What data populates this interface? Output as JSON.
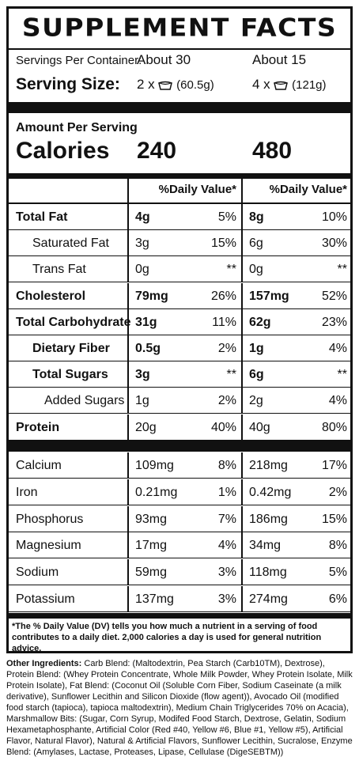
{
  "title": "SUPPLEMENT FACTS",
  "servings_per_container_label": "Servings Per Container:",
  "serving_size_label": "Serving Size:",
  "servings": [
    {
      "per_container": "About 30",
      "scoops": "2 x",
      "grams": "(60.5g)"
    },
    {
      "per_container": "About 15",
      "scoops": "4 x",
      "grams": "(121g)"
    }
  ],
  "amount_per_serving_label": "Amount Per Serving",
  "calories_label": "Calories",
  "calories": [
    "240",
    "480"
  ],
  "daily_value_header": "%Daily Value*",
  "macros": [
    {
      "name": "Total Fat",
      "bold": true,
      "indent": 0,
      "a": "4g",
      "a_dv": "5%",
      "b": "8g",
      "b_dv": "10%"
    },
    {
      "name": "Saturated Fat",
      "bold": false,
      "indent": 1,
      "a": "3g",
      "a_dv": "15%",
      "b": "6g",
      "b_dv": "30%"
    },
    {
      "name": "Trans Fat",
      "bold": false,
      "indent": 1,
      "a": "0g",
      "a_dv": "**",
      "b": "0g",
      "b_dv": "**"
    },
    {
      "name": "Cholesterol",
      "bold": true,
      "indent": 0,
      "a": "79mg",
      "a_dv": "26%",
      "b": "157mg",
      "b_dv": "52%"
    },
    {
      "name": "Total Carbohydrate",
      "bold": true,
      "indent": 0,
      "a": "31g",
      "a_dv": "11%",
      "b": "62g",
      "b_dv": "23%"
    },
    {
      "name": "Dietary Fiber",
      "bold": true,
      "indent": 1,
      "a": "0.5g",
      "a_dv": "2%",
      "b": "1g",
      "b_dv": "4%"
    },
    {
      "name": "Total Sugars",
      "bold": true,
      "indent": 1,
      "a": "3g",
      "a_dv": "**",
      "b": "6g",
      "b_dv": "**"
    },
    {
      "name": "Added Sugars",
      "bold": false,
      "indent": 2,
      "a": "1g",
      "a_dv": "2%",
      "b": "2g",
      "b_dv": "4%"
    },
    {
      "name": "Protein",
      "bold": true,
      "indent": 0,
      "a": "20g",
      "a_dv": "40%",
      "b": "40g",
      "b_dv": "80%"
    }
  ],
  "minerals": [
    {
      "name": "Calcium",
      "a": "109mg",
      "a_dv": "8%",
      "b": "218mg",
      "b_dv": "17%"
    },
    {
      "name": "Iron",
      "a": "0.21mg",
      "a_dv": "1%",
      "b": "0.42mg",
      "b_dv": "2%"
    },
    {
      "name": "Phosphorus",
      "a": "93mg",
      "a_dv": "7%",
      "b": "186mg",
      "b_dv": "15%"
    },
    {
      "name": "Magnesium",
      "a": "17mg",
      "a_dv": "4%",
      "b": "34mg",
      "b_dv": "8%"
    },
    {
      "name": "Sodium",
      "a": "59mg",
      "a_dv": "3%",
      "b": "118mg",
      "b_dv": "5%"
    },
    {
      "name": "Potassium",
      "a": "137mg",
      "a_dv": "3%",
      "b": "274mg",
      "b_dv": "6%"
    }
  ],
  "footnote": "*The % Daily Value (DV) tells you how much a nutrient in a serving of food contributes to a daily diet. 2,000 calories a day is used for general nutrition advice.",
  "ingredients_label": "Other Ingredients:",
  "ingredients_text": " Carb Blend: (Maltodextrin, Pea Starch (Carb10TM), Dextrose), Protein Blend: (Whey Protein Concentrate, Whole Milk Powder, Whey Protein Isolate, Milk Protein Isolate), Fat Blend: (Coconut Oil (Soluble Corn Fiber, Sodium Caseinate (a milk derivative), Sunflower Lecithin and Silicon Dioxide (flow agent)), Avocado Oil (modified food starch (tapioca), tapioca maltodextrin), Medium Chain Triglycerides 70% on Acacia), Marshmallow Bits: (Sugar, Corn Syrup, Modifed Food Starch, Dextrose, Gelatin, Sodium Hexametaphosphante, Artificial Color (Red #40, Yellow #6, Blue #1, Yellow #5), Artificial Flavor, Natural Flavor), Natural & Artificial Flavors, Sunflower Lecithin, Sucralose, Enzyme Blend: (Amylases, Lactase, Proteases, Lipase, Cellulase (DigeSEBTM))"
}
